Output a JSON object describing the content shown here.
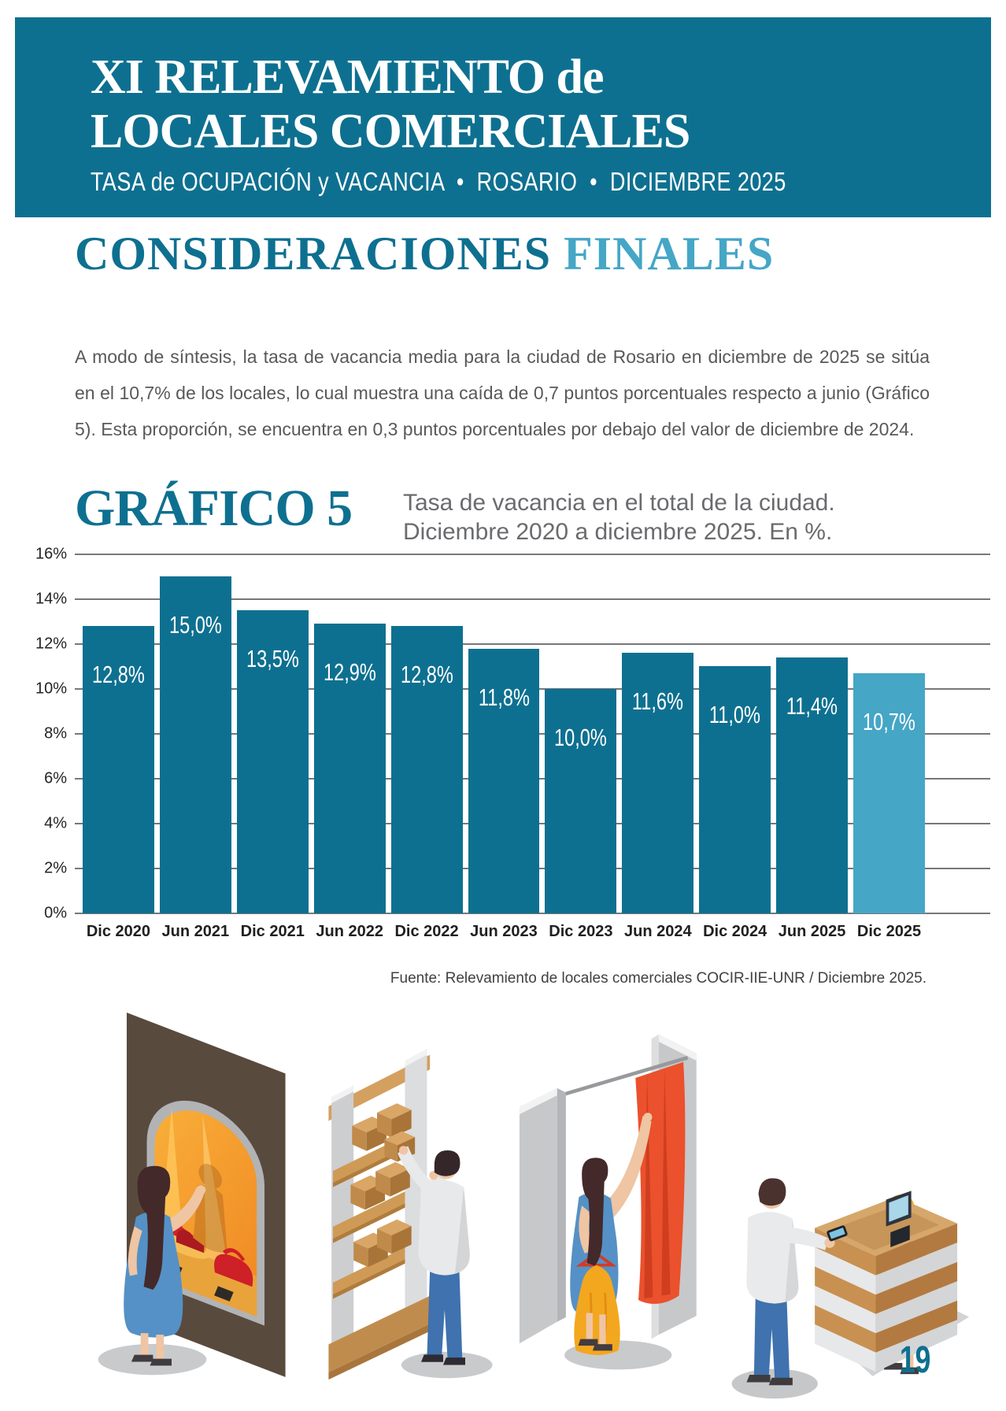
{
  "header": {
    "title_line1": "XI RELEVAMIENTO de",
    "title_line2": "LOCALES COMERCIALES",
    "subtitle": "TASA de OCUPACIÓN y VACANCIA  •  ROSARIO  •  DICIEMBRE 2025"
  },
  "section": {
    "title_primary": "CONSIDERACIONES",
    "title_secondary": "FINALES",
    "paragraph": "A modo de síntesis, la tasa de vacancia media para la ciudad de Rosario en diciembre de 2025 se sitúa en el 10,7% de los locales, lo cual muestra una caída de 0,7 puntos porcentuales respecto a junio (Gráfico 5). Esta proporción, se encuentra en 0,3 puntos porcentuales por debajo del valor de diciembre de 2024."
  },
  "chart": {
    "kicker": "GRÁFICO 5",
    "caption_line1": "Tasa de vacancia en el total de la ciudad.",
    "caption_line2": "Diciembre 2020 a diciembre 2025. En %.",
    "source": "Fuente: Relevamiento de locales comerciales COCIR-IIE-UNR / Diciembre 2025."
  },
  "chart_data": {
    "type": "bar",
    "title": "Tasa de vacancia en el total de la ciudad. Diciembre 2020 a diciembre 2025. En %.",
    "categories": [
      "Dic 2020",
      "Jun 2021",
      "Dic 2021",
      "Jun 2022",
      "Dic 2022",
      "Jun 2023",
      "Dic 2023",
      "Jun 2024",
      "Dic 2024",
      "Jun 2025",
      "Dic 2025"
    ],
    "values": [
      12.8,
      15.0,
      13.5,
      12.9,
      12.8,
      11.8,
      10.0,
      11.6,
      11.0,
      11.4,
      10.7
    ],
    "value_labels": [
      "12,8%",
      "15,0%",
      "13,5%",
      "12,9%",
      "12,8%",
      "11,8%",
      "10,0%",
      "11,6%",
      "11,0%",
      "11,4%",
      "10,7%"
    ],
    "ylim": [
      0,
      16
    ],
    "y_ticks": [
      "16%",
      "14%",
      "12%",
      "10%",
      "8%",
      "6%",
      "4%",
      "2%",
      "0%"
    ],
    "grid": true,
    "legend": "none",
    "bar_color": "#0e7090",
    "highlight_color": "#45a6c6",
    "highlight_index": 10
  },
  "illustrations": {
    "items": [
      "window-shopping",
      "shelf-stocking",
      "fitting-room",
      "checkout-payment"
    ]
  },
  "footer": {
    "page_number": "19"
  },
  "colors": {
    "accent_teal": "#0e7090",
    "accent_light_blue": "#45a6c6",
    "body_text": "#58595b",
    "grid_line": "#76777a"
  }
}
